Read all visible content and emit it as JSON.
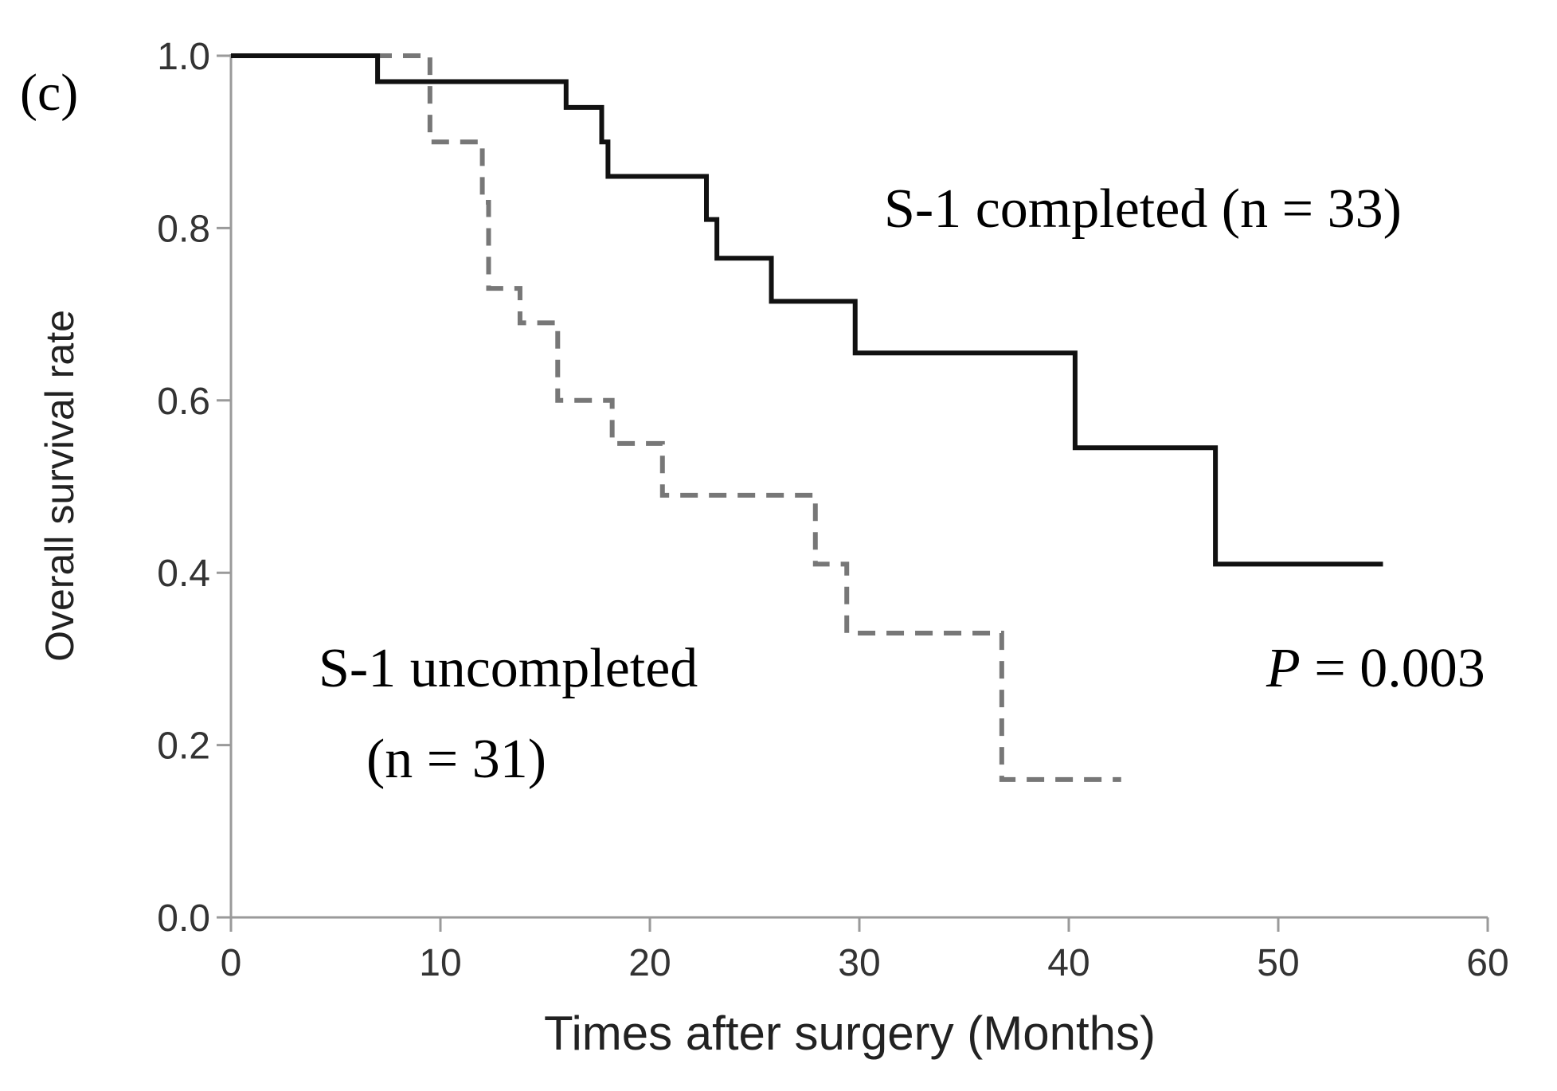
{
  "chart_data": {
    "type": "line",
    "subtype": "kaplan-meier step",
    "panel_label": "(c)",
    "xlabel": "Times after surgery (Months)",
    "ylabel": "Overall survival rate",
    "xlim": [
      0,
      60
    ],
    "ylim": [
      0,
      1
    ],
    "xticks": [
      0,
      10,
      20,
      30,
      40,
      50,
      60
    ],
    "yticks": [
      "0.0",
      "0.2",
      "0.4",
      "0.6",
      "0.8",
      "1.0"
    ],
    "grid": false,
    "series": [
      {
        "label_line1": "S-1 completed (n = 33)",
        "style": "solid",
        "color": "#111111",
        "steps": [
          [
            0,
            1.0
          ],
          [
            7,
            0.97
          ],
          [
            16,
            0.94
          ],
          [
            17.7,
            0.9
          ],
          [
            18,
            0.86
          ],
          [
            22.7,
            0.81
          ],
          [
            23.2,
            0.765
          ],
          [
            25.8,
            0.715
          ],
          [
            29.8,
            0.655
          ],
          [
            40.3,
            0.545
          ],
          [
            47,
            0.41
          ]
        ],
        "end_x": 55
      },
      {
        "label_line1": "S-1 uncompleted",
        "label_line2": "(n = 31)",
        "style": "dashed",
        "color": "#777777",
        "steps": [
          [
            0,
            1.0
          ],
          [
            9.5,
            0.9
          ],
          [
            12,
            0.83
          ],
          [
            12.3,
            0.73
          ],
          [
            13.8,
            0.69
          ],
          [
            15.6,
            0.6
          ],
          [
            18.2,
            0.55
          ],
          [
            20.6,
            0.49
          ],
          [
            27.9,
            0.41
          ],
          [
            29.4,
            0.33
          ],
          [
            36.8,
            0.16
          ]
        ],
        "end_x": 42.5
      }
    ],
    "annotation": {
      "p_symbol": "P",
      "p_rest": " = 0.003"
    }
  }
}
